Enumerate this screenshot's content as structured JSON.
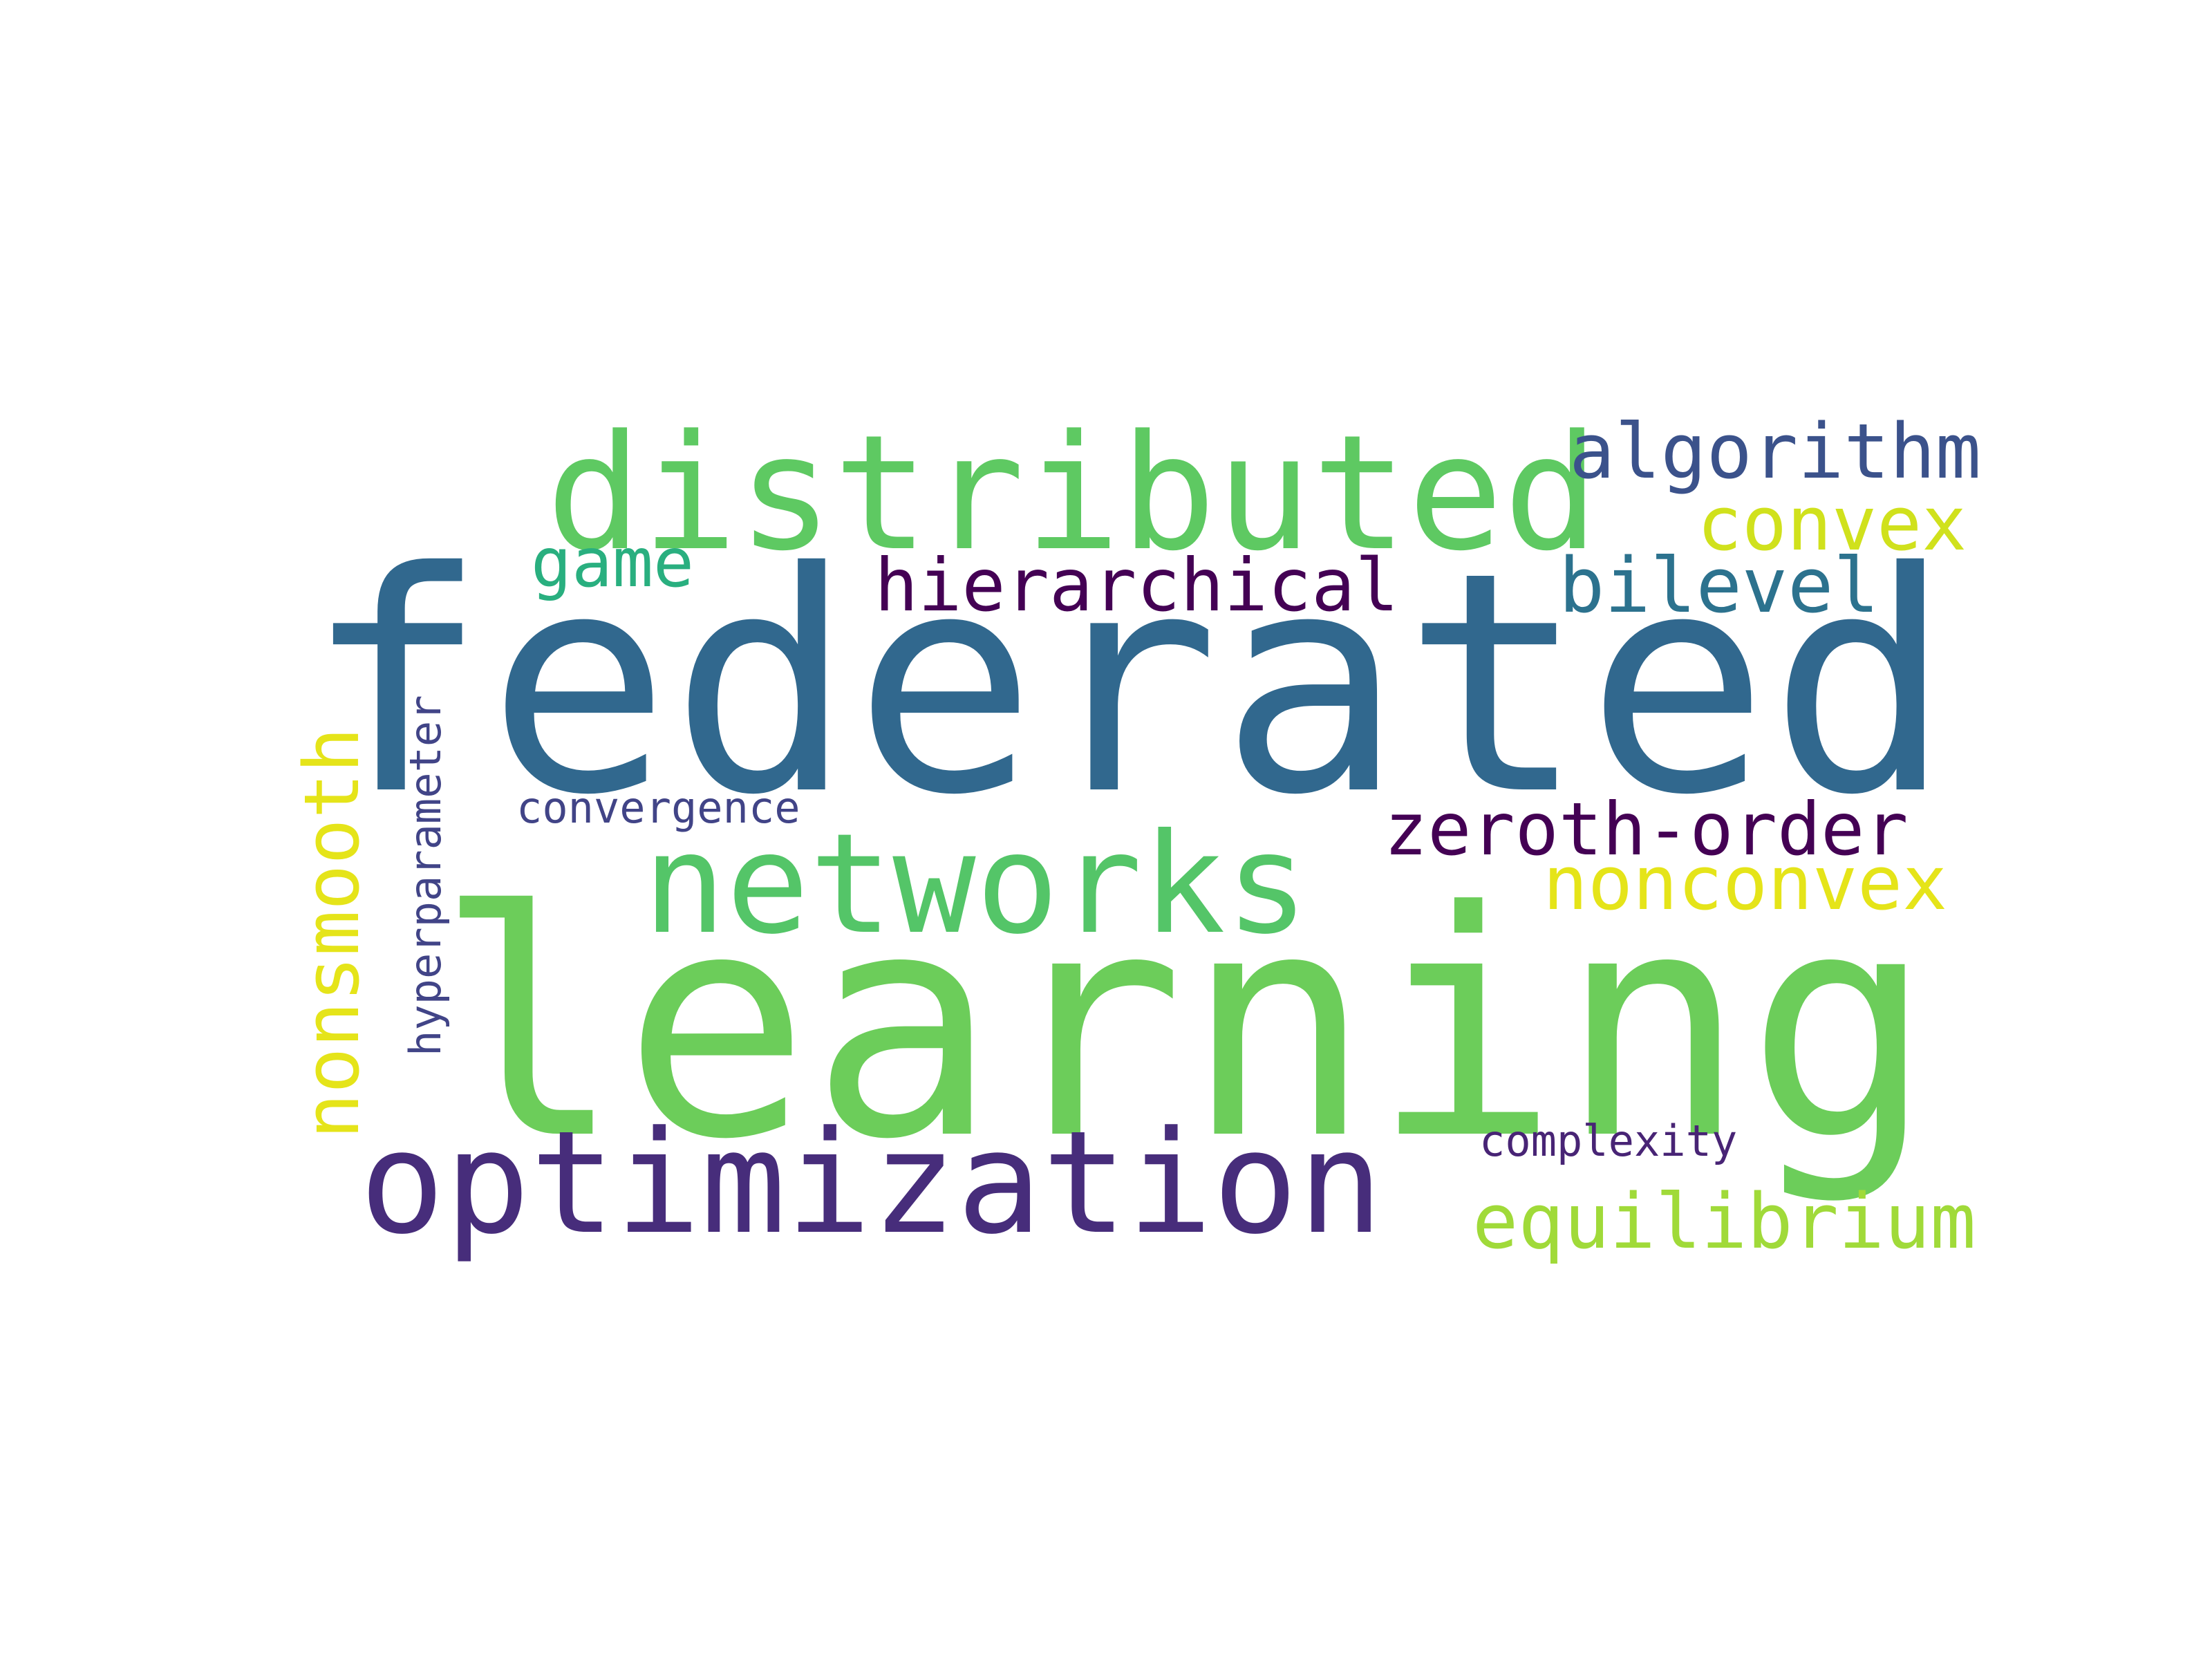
{
  "words": {
    "federated": {
      "text": "federated",
      "color": "#31688e"
    },
    "learning": {
      "text": "learning",
      "color": "#6ccd5a"
    },
    "distributed": {
      "text": "distributed",
      "color": "#5ec962"
    },
    "networks": {
      "text": "networks",
      "color": "#54c568"
    },
    "optimization": {
      "text": "optimization",
      "color": "#472d7b"
    },
    "algorithm": {
      "text": "algorithm",
      "color": "#3b528b"
    },
    "convex": {
      "text": "convex",
      "color": "#d0e11c"
    },
    "game": {
      "text": "game",
      "color": "#29af7f"
    },
    "hierarchical": {
      "text": "hierarchical",
      "color": "#440154"
    },
    "bilevel": {
      "text": "bilevel",
      "color": "#2c728e"
    },
    "zeroth_order": {
      "text": "zeroth-order",
      "color": "#440154"
    },
    "nonconvex": {
      "text": "nonconvex",
      "color": "#e5e419"
    },
    "nonsmooth": {
      "text": "nonsmooth",
      "color": "#e5e419"
    },
    "hyperparameter": {
      "text": "hyperparameter",
      "color": "#414487"
    },
    "convergence": {
      "text": "convergence",
      "color": "#414487"
    },
    "complexity": {
      "text": "complexity",
      "color": "#482475"
    },
    "equilibrium": {
      "text": "equilibrium",
      "color": "#a0da39"
    }
  }
}
